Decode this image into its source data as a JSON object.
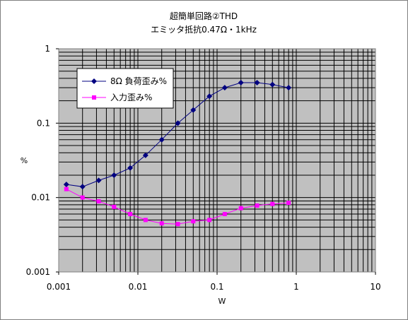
{
  "chart_data": {
    "type": "line",
    "title": "超簡単回路②THD",
    "subtitle": "エミッタ抵抗0.47Ω・1kHz",
    "xlabel": "W",
    "ylabel": "%",
    "x_scale": "log",
    "y_scale": "log",
    "xlim": [
      0.001,
      10
    ],
    "ylim": [
      0.001,
      1
    ],
    "x_ticks": [
      "0.001",
      "0.01",
      "0.1",
      "1",
      "10"
    ],
    "y_ticks": [
      "0.001",
      "0.01",
      "0.1",
      "1"
    ],
    "grid": true,
    "legend_position": "upper-left",
    "colors": {
      "plot_background": "#c0c0c0",
      "grid": "#000000",
      "series1": "#000080",
      "series2": "#ff00ff"
    },
    "series": [
      {
        "name": "8Ω 負荷歪み%",
        "marker": "diamond",
        "color": "#000080",
        "x": [
          0.00125,
          0.002,
          0.0032,
          0.005,
          0.008,
          0.0125,
          0.02,
          0.032,
          0.05,
          0.08,
          0.125,
          0.2,
          0.32,
          0.5,
          0.8
        ],
        "y": [
          0.015,
          0.014,
          0.017,
          0.02,
          0.025,
          0.037,
          0.06,
          0.1,
          0.15,
          0.23,
          0.3,
          0.35,
          0.35,
          0.33,
          0.3
        ]
      },
      {
        "name": "入力歪み%",
        "marker": "square",
        "color": "#ff00ff",
        "x": [
          0.00125,
          0.002,
          0.0032,
          0.005,
          0.008,
          0.0125,
          0.02,
          0.032,
          0.05,
          0.08,
          0.125,
          0.2,
          0.32,
          0.5,
          0.8
        ],
        "y": [
          0.013,
          0.01,
          0.0089,
          0.0075,
          0.006,
          0.005,
          0.0045,
          0.0044,
          0.0048,
          0.005,
          0.006,
          0.0072,
          0.0078,
          0.0082,
          0.0085
        ]
      }
    ]
  }
}
